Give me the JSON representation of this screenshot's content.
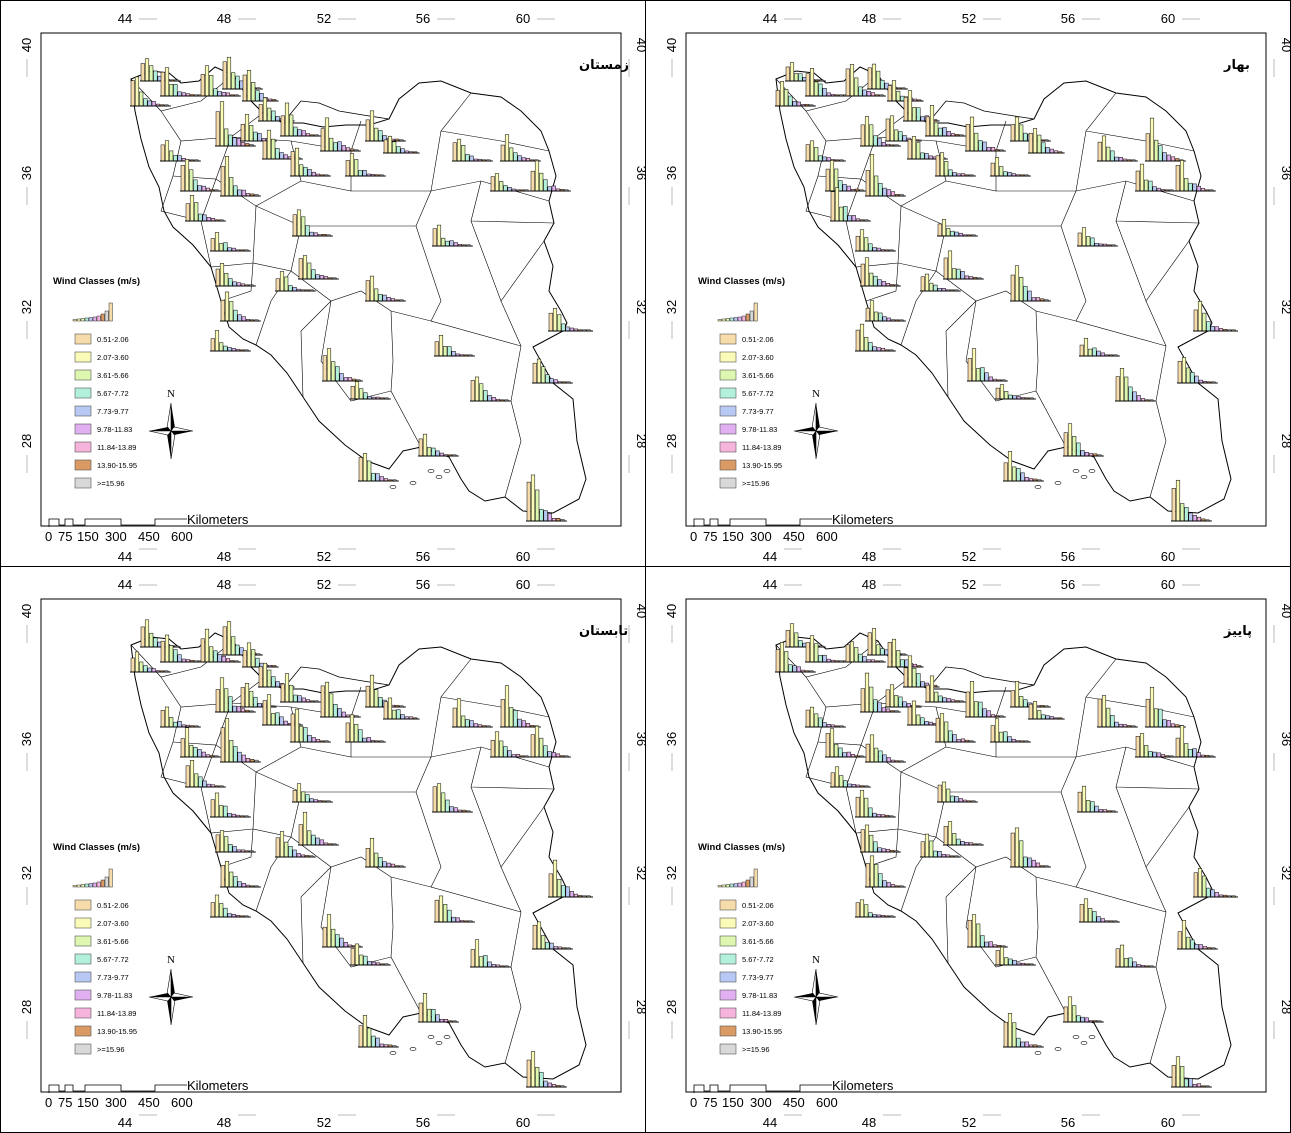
{
  "axes": {
    "top_ticks": [
      "44",
      "48",
      "52",
      "56",
      "60"
    ],
    "bottom_ticks": [
      "44",
      "48",
      "52",
      "56",
      "60"
    ],
    "left_ticks": [
      "40",
      "36",
      "32",
      "28"
    ],
    "right_ticks": [
      "40",
      "36",
      "32",
      "28"
    ]
  },
  "legend": {
    "title": "Wind Classes (m/s)",
    "classes": [
      {
        "label": "0.51-2.06",
        "color": "#f6dcaa"
      },
      {
        "label": "2.07-3.60",
        "color": "#fbfbb8"
      },
      {
        "label": "3.61-5.66",
        "color": "#ddf7b0"
      },
      {
        "label": "5.67-7.72",
        "color": "#b2f0dc"
      },
      {
        "label": "7.73-9.77",
        "color": "#b8c8f4"
      },
      {
        "label": "9.78-11.83",
        "color": "#e0b0f0"
      },
      {
        "label": "11.84-13.89",
        "color": "#f6b4dc"
      },
      {
        "label": "13.90-15.95",
        "color": "#d99a64"
      },
      {
        "label": ">=15.96",
        "color": "#d8d8d8"
      }
    ]
  },
  "scale_bar": {
    "labels": [
      "0",
      "75",
      "150",
      "300",
      "450",
      "600"
    ],
    "unit": "Kilometers"
  },
  "north_arrow": "N",
  "panels": [
    {
      "season": "زمستان",
      "id": "winter"
    },
    {
      "season": "بهار",
      "id": "spring"
    },
    {
      "season": "تابستان",
      "id": "summer"
    },
    {
      "season": "پاییز",
      "id": "autumn"
    }
  ]
}
